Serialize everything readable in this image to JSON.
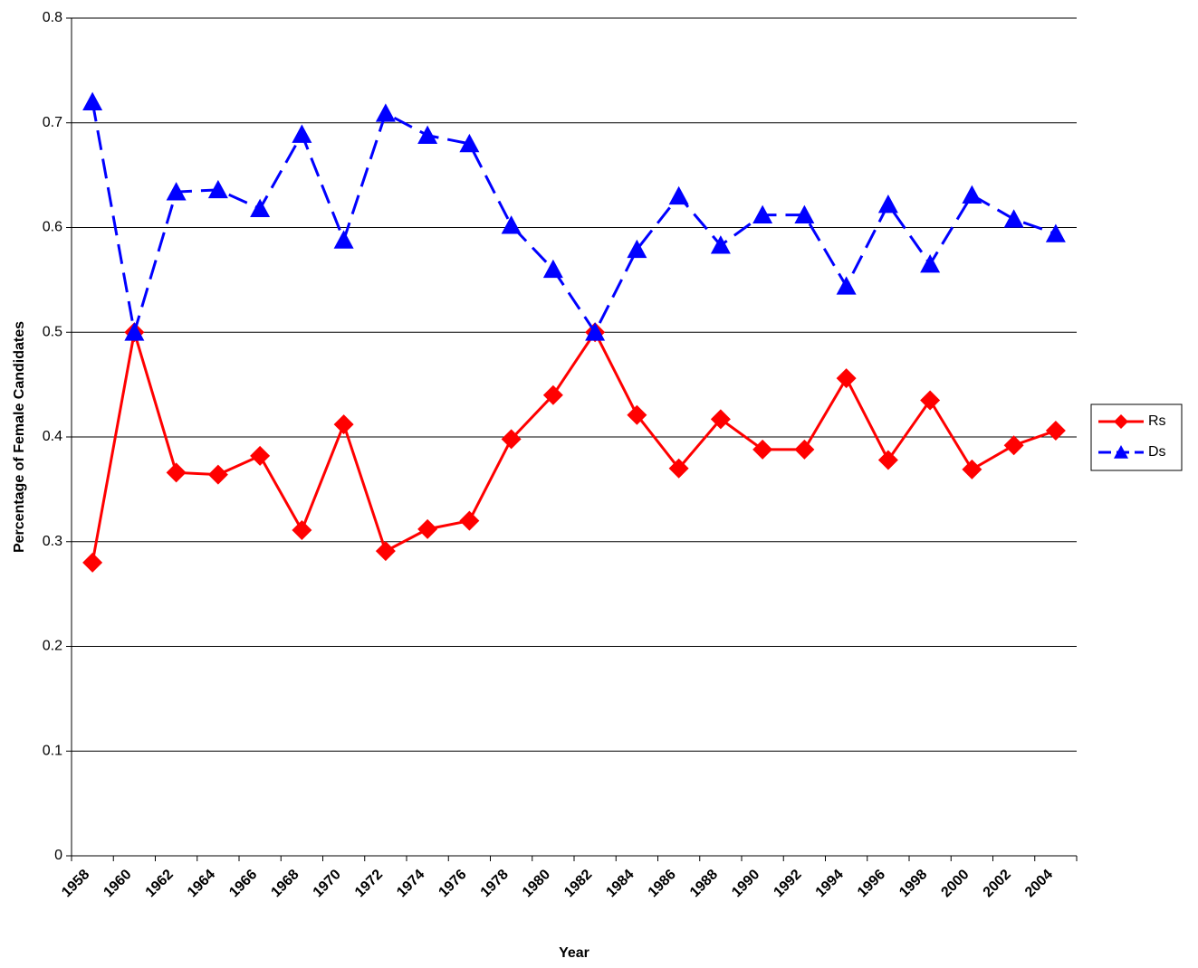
{
  "chart_data": {
    "type": "line",
    "x_label": "Year",
    "y_label": "Percentage of Female Candidates",
    "categories": [
      "1958",
      "1960",
      "1962",
      "1964",
      "1966",
      "1968",
      "1970",
      "1972",
      "1974",
      "1976",
      "1978",
      "1980",
      "1982",
      "1984",
      "1986",
      "1988",
      "1990",
      "1992",
      "1994",
      "1996",
      "1998",
      "2000",
      "2002",
      "2004"
    ],
    "series": [
      {
        "name": "Rs",
        "color": "#ff0000",
        "dashed": false,
        "marker": "diamond",
        "values": [
          0.28,
          0.5,
          0.366,
          0.364,
          0.382,
          0.311,
          0.412,
          0.291,
          0.312,
          0.32,
          0.398,
          0.44,
          0.5,
          0.421,
          0.37,
          0.417,
          0.388,
          0.388,
          0.456,
          0.378,
          0.435,
          0.369,
          0.392,
          0.406
        ]
      },
      {
        "name": "Ds",
        "color": "#0000ff",
        "dashed": true,
        "marker": "triangle",
        "values": [
          0.72,
          0.5,
          0.634,
          0.636,
          0.618,
          0.689,
          0.588,
          0.709,
          0.688,
          0.68,
          0.602,
          0.56,
          0.5,
          0.579,
          0.63,
          0.583,
          0.612,
          0.612,
          0.544,
          0.622,
          0.565,
          0.631,
          0.608,
          0.594
        ]
      }
    ],
    "ylim": [
      0,
      0.8
    ],
    "yticks": [
      0,
      0.1,
      0.2,
      0.3,
      0.4,
      0.5,
      0.6,
      0.7,
      0.8
    ],
    "grid": true,
    "legend": "right"
  }
}
